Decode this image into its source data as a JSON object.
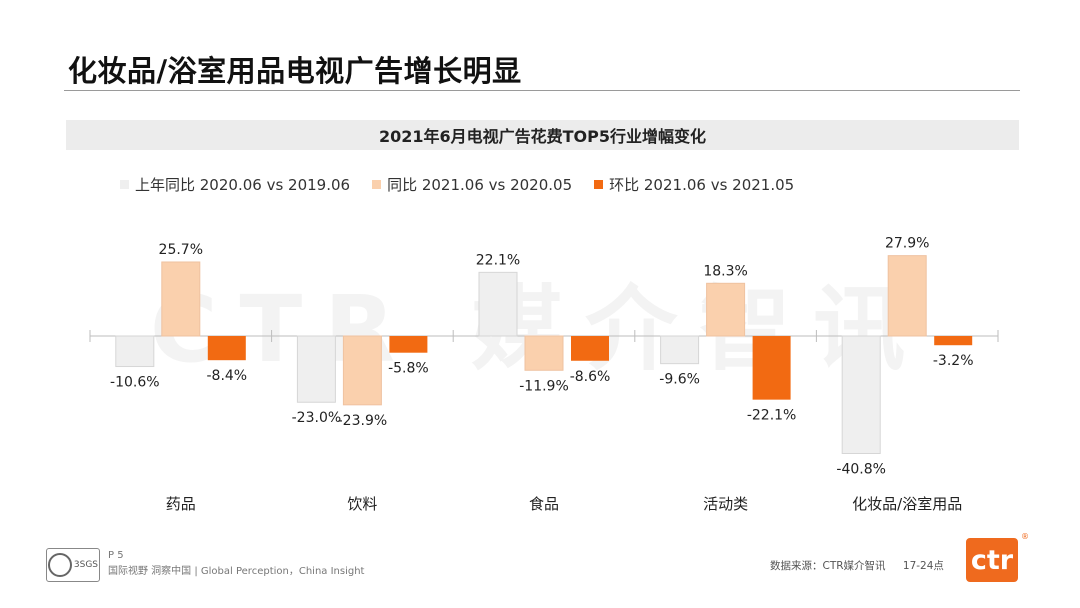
{
  "page": {
    "title": "化妆品/浴室用品电视广告增长明显",
    "page_number": "P 5",
    "tagline": "国际视野  洞察中国 |  Global Perception，China Insight",
    "source": "数据来源：CTR媒介智讯",
    "time_band": "17-24点",
    "watermark": "CTR 媒介智讯",
    "logo_text": "ctr",
    "registered_mark": "®",
    "cert_label": "3SGS"
  },
  "colors": {
    "yoy_2019": "#efefef",
    "yoy_2020": "#fad0ad",
    "mom": "#f26a12",
    "axis": "#bdbdbd"
  },
  "chart_data": {
    "type": "bar",
    "title": "2021年6月电视广告花费TOP5行业增幅变化",
    "categories": [
      "药品",
      "饮料",
      "食品",
      "活动类",
      "化妆品/浴室用品"
    ],
    "series": [
      {
        "name": "上年同比 2020.06 vs 2019.06",
        "values": [
          -10.6,
          -23.0,
          22.1,
          -9.6,
          -40.8
        ]
      },
      {
        "name": "同比 2021.06 vs 2020.05",
        "values": [
          25.7,
          -23.9,
          -11.9,
          18.3,
          27.9
        ]
      },
      {
        "name": "环比 2021.06 vs 2021.05",
        "values": [
          -8.4,
          -5.8,
          -8.6,
          -22.1,
          -3.2
        ]
      }
    ],
    "value_suffix": "%",
    "xlabel": "",
    "ylabel": "",
    "ylim": [
      -45,
      30
    ],
    "legend_position": "top-left",
    "grid": false
  }
}
